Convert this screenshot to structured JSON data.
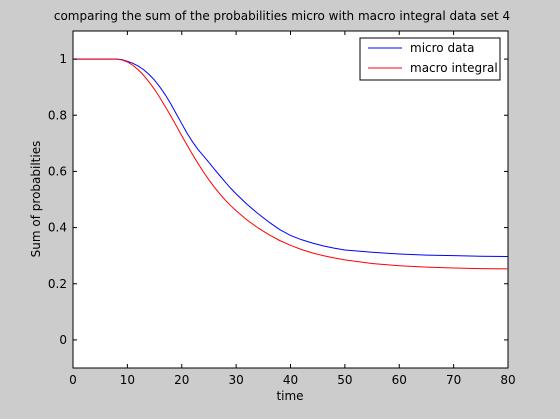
{
  "chart_data": {
    "type": "line",
    "title": "comparing the sum of the probabilities micro with macro integral data set 4",
    "xlabel": "time",
    "ylabel": "Sum of probabilties",
    "xlim": [
      0,
      80
    ],
    "ylim": [
      -0.1,
      1.1
    ],
    "xticks": [
      0,
      10,
      20,
      30,
      40,
      50,
      60,
      70,
      80
    ],
    "yticks": [
      0,
      0.2,
      0.4,
      0.6,
      0.8,
      1
    ],
    "ytick_labels": [
      "0",
      "0.2",
      "0.4",
      "0.6",
      "0.8",
      "1"
    ],
    "grid": false,
    "legend_position": "top-right",
    "series": [
      {
        "name": "micro data",
        "color": "#0000ff",
        "x": [
          0,
          8,
          9,
          10,
          11,
          12,
          13,
          14,
          15,
          16,
          17,
          18,
          19,
          20,
          21,
          22,
          23,
          24,
          25,
          26,
          27,
          28,
          29,
          30,
          32,
          34,
          36,
          38,
          40,
          42,
          44,
          46,
          48,
          50,
          55,
          60,
          65,
          70,
          75,
          80
        ],
        "y": [
          1.0,
          1.0,
          0.998,
          0.992,
          0.985,
          0.975,
          0.962,
          0.945,
          0.925,
          0.9,
          0.872,
          0.84,
          0.805,
          0.77,
          0.735,
          0.705,
          0.678,
          0.655,
          0.632,
          0.608,
          0.585,
          0.562,
          0.54,
          0.52,
          0.483,
          0.45,
          0.42,
          0.393,
          0.372,
          0.357,
          0.345,
          0.335,
          0.327,
          0.32,
          0.312,
          0.306,
          0.302,
          0.3,
          0.298,
          0.297
        ]
      },
      {
        "name": "macro integral",
        "color": "#ff0000",
        "x": [
          0,
          8,
          9,
          10,
          11,
          12,
          13,
          14,
          15,
          16,
          17,
          18,
          19,
          20,
          21,
          22,
          23,
          24,
          25,
          26,
          27,
          28,
          29,
          30,
          32,
          34,
          36,
          38,
          40,
          42,
          44,
          46,
          48,
          50,
          55,
          60,
          65,
          70,
          75,
          80
        ],
        "y": [
          1.0,
          1.0,
          0.997,
          0.99,
          0.978,
          0.962,
          0.942,
          0.918,
          0.892,
          0.862,
          0.83,
          0.797,
          0.762,
          0.727,
          0.693,
          0.66,
          0.628,
          0.598,
          0.57,
          0.544,
          0.52,
          0.498,
          0.478,
          0.46,
          0.427,
          0.399,
          0.375,
          0.354,
          0.337,
          0.322,
          0.31,
          0.3,
          0.292,
          0.285,
          0.272,
          0.264,
          0.259,
          0.256,
          0.254,
          0.253
        ]
      }
    ]
  }
}
